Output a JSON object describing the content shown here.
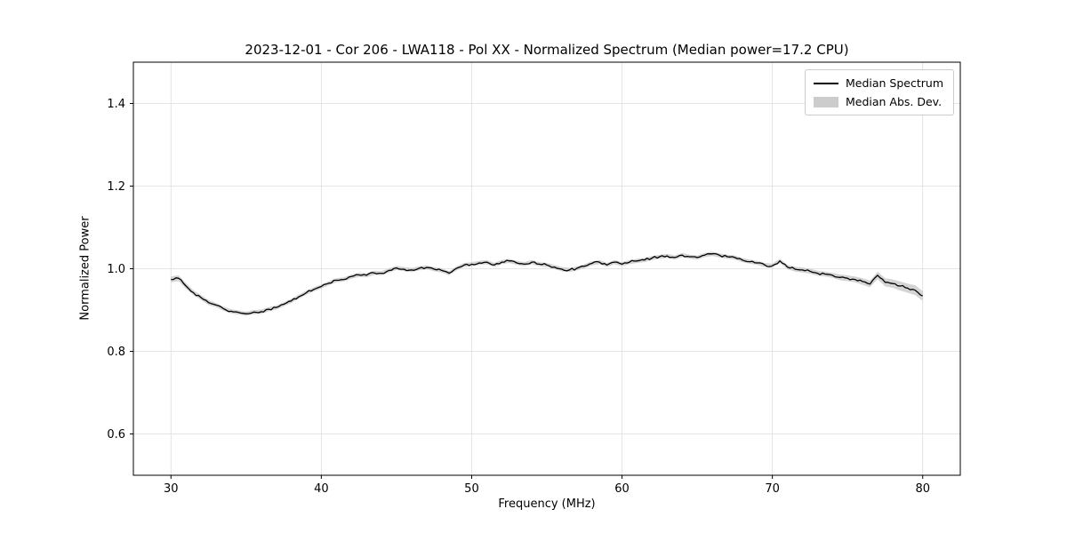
{
  "chart_data": {
    "type": "line",
    "title": "2023-12-01 - Cor 206 - LWA118 - Pol XX - Normalized Spectrum (Median power=17.2 CPU)",
    "xlabel": "Frequency (MHz)",
    "ylabel": "Normalized Power",
    "xlim": [
      27.5,
      82.5
    ],
    "ylim": [
      0.5,
      1.5
    ],
    "xticks": [
      30,
      40,
      50,
      60,
      70,
      80
    ],
    "yticks": [
      0.6,
      0.8,
      1.0,
      1.2,
      1.4
    ],
    "grid": true,
    "colors": {
      "line": "#000000",
      "band": "#cccccc",
      "grid": "#dddddd",
      "spine": "#000000"
    },
    "legend": {
      "position": "upper right",
      "entries": [
        {
          "label": "Median Spectrum",
          "type": "line",
          "color": "#000000"
        },
        {
          "label": "Median Abs. Dev.",
          "type": "band",
          "color": "#cccccc"
        }
      ]
    },
    "series": [
      {
        "name": "Median Spectrum",
        "point_format": [
          "frequency_mhz",
          "normalized_power",
          "median_abs_dev"
        ],
        "points": [
          [
            30.0,
            0.974,
            0.007
          ],
          [
            30.5,
            0.977,
            0.007
          ],
          [
            31.0,
            0.958,
            0.007
          ],
          [
            31.5,
            0.942,
            0.006
          ],
          [
            32.0,
            0.93,
            0.006
          ],
          [
            32.5,
            0.918,
            0.006
          ],
          [
            33.0,
            0.912,
            0.005
          ],
          [
            33.5,
            0.903,
            0.005
          ],
          [
            34.0,
            0.897,
            0.005
          ],
          [
            34.5,
            0.894,
            0.005
          ],
          [
            35.0,
            0.891,
            0.005
          ],
          [
            35.5,
            0.895,
            0.005
          ],
          [
            36.0,
            0.896,
            0.005
          ],
          [
            36.5,
            0.902,
            0.005
          ],
          [
            37.0,
            0.906,
            0.005
          ],
          [
            37.5,
            0.914,
            0.005
          ],
          [
            38.0,
            0.922,
            0.005
          ],
          [
            38.5,
            0.932,
            0.005
          ],
          [
            39.0,
            0.942,
            0.005
          ],
          [
            39.5,
            0.95,
            0.005
          ],
          [
            40.0,
            0.957,
            0.005
          ],
          [
            40.5,
            0.965,
            0.005
          ],
          [
            41.0,
            0.972,
            0.005
          ],
          [
            41.5,
            0.974,
            0.005
          ],
          [
            42.0,
            0.981,
            0.005
          ],
          [
            42.5,
            0.985,
            0.005
          ],
          [
            43.0,
            0.984,
            0.005
          ],
          [
            43.5,
            0.99,
            0.005
          ],
          [
            44.0,
            0.989,
            0.005
          ],
          [
            44.5,
            0.996,
            0.005
          ],
          [
            45.0,
            1.002,
            0.005
          ],
          [
            45.5,
            0.999,
            0.005
          ],
          [
            46.0,
            0.997,
            0.005
          ],
          [
            46.5,
            1.001,
            0.005
          ],
          [
            47.0,
            1.003,
            0.005
          ],
          [
            47.5,
            0.999,
            0.005
          ],
          [
            48.0,
            0.996,
            0.005
          ],
          [
            48.5,
            0.989,
            0.005
          ],
          [
            49.0,
            1.001,
            0.005
          ],
          [
            49.5,
            1.009,
            0.005
          ],
          [
            50.0,
            1.011,
            0.005
          ],
          [
            50.5,
            1.014,
            0.005
          ],
          [
            51.0,
            1.016,
            0.005
          ],
          [
            51.5,
            1.009,
            0.005
          ],
          [
            52.0,
            1.016,
            0.005
          ],
          [
            52.5,
            1.019,
            0.005
          ],
          [
            53.0,
            1.014,
            0.005
          ],
          [
            53.5,
            1.011,
            0.005
          ],
          [
            54.0,
            1.016,
            0.005
          ],
          [
            54.5,
            1.011,
            0.005
          ],
          [
            55.0,
            1.009,
            0.005
          ],
          [
            55.5,
            1.004,
            0.005
          ],
          [
            56.0,
            0.999,
            0.005
          ],
          [
            56.5,
            0.997,
            0.005
          ],
          [
            57.0,
            1.001,
            0.005
          ],
          [
            57.5,
            1.006,
            0.005
          ],
          [
            58.0,
            1.013,
            0.005
          ],
          [
            58.5,
            1.016,
            0.005
          ],
          [
            59.0,
            1.009,
            0.005
          ],
          [
            59.5,
            1.016,
            0.005
          ],
          [
            60.0,
            1.011,
            0.005
          ],
          [
            60.5,
            1.016,
            0.005
          ],
          [
            61.0,
            1.019,
            0.005
          ],
          [
            61.5,
            1.021,
            0.005
          ],
          [
            62.0,
            1.026,
            0.005
          ],
          [
            62.5,
            1.029,
            0.005
          ],
          [
            63.0,
            1.031,
            0.005
          ],
          [
            63.5,
            1.027,
            0.005
          ],
          [
            64.0,
            1.033,
            0.005
          ],
          [
            64.5,
            1.029,
            0.005
          ],
          [
            65.0,
            1.027,
            0.005
          ],
          [
            65.5,
            1.033,
            0.005
          ],
          [
            66.0,
            1.036,
            0.005
          ],
          [
            66.5,
            1.032,
            0.005
          ],
          [
            67.0,
            1.029,
            0.005
          ],
          [
            67.5,
            1.027,
            0.005
          ],
          [
            68.0,
            1.021,
            0.005
          ],
          [
            68.5,
            1.017,
            0.005
          ],
          [
            69.0,
            1.014,
            0.005
          ],
          [
            69.5,
            1.009,
            0.005
          ],
          [
            70.0,
            1.007,
            0.005
          ],
          [
            70.5,
            1.019,
            0.005
          ],
          [
            71.0,
            1.004,
            0.005
          ],
          [
            71.5,
            0.999,
            0.006
          ],
          [
            72.0,
            0.997,
            0.006
          ],
          [
            72.5,
            0.994,
            0.006
          ],
          [
            73.0,
            0.989,
            0.006
          ],
          [
            73.5,
            0.987,
            0.006
          ],
          [
            74.0,
            0.984,
            0.006
          ],
          [
            74.5,
            0.979,
            0.007
          ],
          [
            75.0,
            0.977,
            0.007
          ],
          [
            75.5,
            0.974,
            0.007
          ],
          [
            76.0,
            0.969,
            0.008
          ],
          [
            76.5,
            0.963,
            0.008
          ],
          [
            77.0,
            0.984,
            0.009
          ],
          [
            77.5,
            0.967,
            0.01
          ],
          [
            78.0,
            0.964,
            0.01
          ],
          [
            78.5,
            0.958,
            0.011
          ],
          [
            79.0,
            0.953,
            0.011
          ],
          [
            79.5,
            0.948,
            0.012
          ],
          [
            80.0,
            0.934,
            0.012
          ]
        ]
      }
    ]
  }
}
